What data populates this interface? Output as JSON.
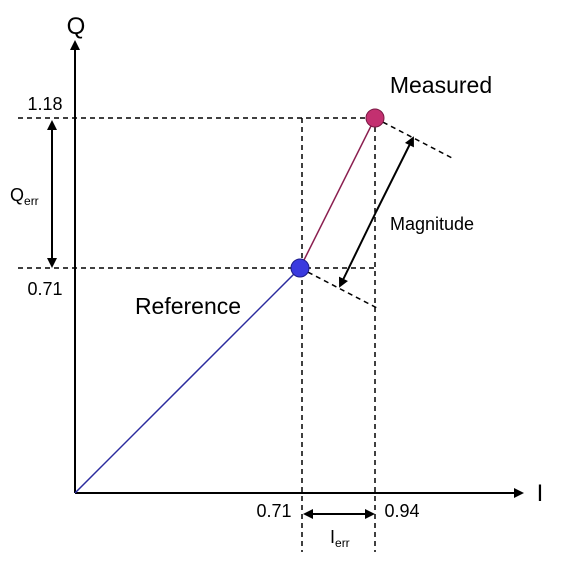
{
  "axes": {
    "x_label": "I",
    "y_label": "Q"
  },
  "q_ticks": [
    "1.18",
    "0.71"
  ],
  "i_ticks": [
    "0.71",
    "0.94"
  ],
  "points": {
    "reference": "Reference",
    "measured": "Measured"
  },
  "magnitude": "Magnitude",
  "q_error": {
    "main": "Q",
    "sub": "err"
  },
  "i_error": {
    "main": "I",
    "sub": "err"
  }
}
